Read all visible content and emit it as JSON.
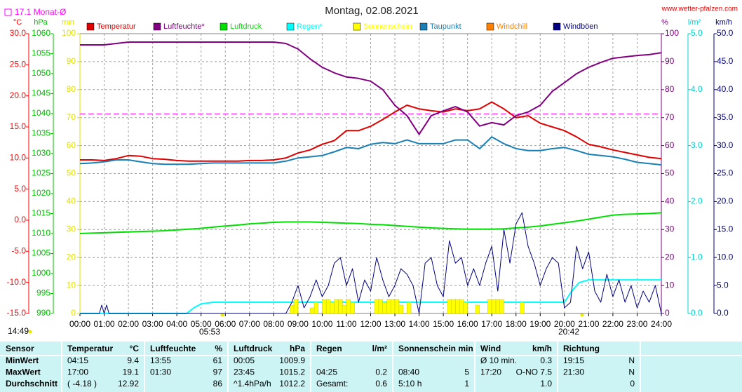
{
  "chart_data": {
    "type": "line",
    "title": "Montag, 02.08.2021",
    "source": "www.wetter-pfalzen.com",
    "reference": {
      "label": "17.1 Monat-Ø",
      "value": 17.1,
      "axis": 0,
      "color": "#ff00ff"
    },
    "sun": {
      "day_length": "14:49",
      "sunrise": "05:53",
      "sunset": "20:42"
    },
    "grid": true,
    "grid_axis": 3,
    "xlim": [
      0,
      24
    ],
    "xticks": [
      {
        "value": 0,
        "label": "00:00"
      },
      {
        "value": 1,
        "label": "01:00"
      },
      {
        "value": 2,
        "label": "02:00"
      },
      {
        "value": 3,
        "label": "03:00"
      },
      {
        "value": 4,
        "label": "04:00"
      },
      {
        "value": 5,
        "label": "05:00"
      },
      {
        "value": 6,
        "label": "06:00"
      },
      {
        "value": 7,
        "label": "07:00"
      },
      {
        "value": 8,
        "label": "08:00"
      },
      {
        "value": 9,
        "label": "09:00"
      },
      {
        "value": 10,
        "label": "10:00"
      },
      {
        "value": 11,
        "label": "11:00"
      },
      {
        "value": 12,
        "label": "12:00"
      },
      {
        "value": 13,
        "label": "13:00"
      },
      {
        "value": 14,
        "label": "14:00"
      },
      {
        "value": 15,
        "label": "15:00"
      },
      {
        "value": 16,
        "label": "16:00"
      },
      {
        "value": 17,
        "label": "17:00"
      },
      {
        "value": 18,
        "label": "18:00"
      },
      {
        "value": 19,
        "label": "19:00"
      },
      {
        "value": 20,
        "label": "20:00"
      },
      {
        "value": 21,
        "label": "21:00"
      },
      {
        "value": 22,
        "label": "22:00"
      },
      {
        "value": 23,
        "label": "23:00"
      },
      {
        "value": 24,
        "label": "24:00"
      }
    ],
    "axes": [
      {
        "unit": "°C",
        "color": "#ff0000",
        "lim": [
          -15,
          30
        ],
        "ticks": [
          {
            "value": 30,
            "label": "30.0"
          },
          {
            "value": 25,
            "label": "25.0"
          },
          {
            "value": 20,
            "label": "20.0"
          },
          {
            "value": 15,
            "label": "15.0"
          },
          {
            "value": 10,
            "label": "10.0"
          },
          {
            "value": 5,
            "label": "5.0"
          },
          {
            "value": 0,
            "label": "0.0"
          },
          {
            "value": -5,
            "label": "-5.0"
          },
          {
            "value": -10,
            "label": "-10.0"
          },
          {
            "value": -15,
            "label": "-15.0"
          }
        ]
      },
      {
        "unit": "hPa",
        "color": "#00c000",
        "lim": [
          990,
          1060
        ],
        "ticks": [
          1060,
          1055,
          1050,
          1045,
          1040,
          1035,
          1030,
          1025,
          1020,
          1015,
          1010,
          1005,
          1000,
          995,
          990
        ]
      },
      {
        "unit": "min",
        "color": "#e0e000",
        "lim": [
          0,
          100
        ],
        "ticks": [
          100,
          90,
          80,
          70,
          60,
          50,
          40,
          30,
          20,
          10,
          0
        ]
      },
      {
        "unit": "%",
        "color": "#800080",
        "lim": [
          0,
          100
        ],
        "ticks": [
          100,
          90,
          80,
          70,
          60,
          50,
          40,
          30,
          20,
          10,
          0
        ]
      },
      {
        "unit": "l/m²",
        "color": "#00d0d0",
        "lim": [
          0,
          5
        ],
        "ticks": [
          {
            "value": 5,
            "label": "5.0"
          },
          {
            "value": 4,
            "label": "4.0"
          },
          {
            "value": 3,
            "label": "3.0"
          },
          {
            "value": 2,
            "label": "2.0"
          },
          {
            "value": 1,
            "label": "1.0"
          },
          {
            "value": 0,
            "label": "0.0"
          }
        ]
      },
      {
        "unit": "km/h",
        "color": "#000080",
        "lim": [
          0,
          50
        ],
        "ticks": [
          {
            "value": 50,
            "label": "50.0"
          },
          {
            "value": 45,
            "label": "45.0"
          },
          {
            "value": 40,
            "label": "40.0"
          },
          {
            "value": 35,
            "label": "35.0"
          },
          {
            "value": 30,
            "label": "30.0"
          },
          {
            "value": 25,
            "label": "25.0"
          },
          {
            "value": 20,
            "label": "20.0"
          },
          {
            "value": 15,
            "label": "15.0"
          },
          {
            "value": 10,
            "label": "10.0"
          },
          {
            "value": 5,
            "label": "5.0"
          },
          {
            "value": 0,
            "label": "0.0"
          }
        ]
      }
    ],
    "x": [
      0,
      0.5,
      1,
      1.5,
      2,
      2.5,
      3,
      3.5,
      4,
      4.5,
      5,
      5.5,
      6,
      6.5,
      7,
      7.5,
      8,
      8.5,
      9,
      9.5,
      10,
      10.5,
      11,
      11.5,
      12,
      12.5,
      13,
      13.5,
      14,
      14.5,
      15,
      15.5,
      16,
      16.5,
      17,
      17.5,
      18,
      18.5,
      19,
      19.5,
      20,
      20.5,
      21,
      21.5,
      22,
      22.5,
      23,
      23.5,
      24
    ],
    "series": [
      {
        "name": "Temperatur",
        "color": "#e00000",
        "axis": 0,
        "values": [
          9.7,
          9.7,
          9.6,
          9.9,
          10.4,
          10.3,
          9.9,
          9.8,
          9.6,
          9.5,
          9.5,
          9.5,
          9.5,
          9.5,
          9.6,
          9.6,
          9.7,
          10.0,
          10.8,
          11.3,
          12.2,
          12.8,
          14.4,
          14.4,
          15.1,
          16.2,
          17.4,
          18.5,
          17.9,
          17.6,
          17.4,
          17.9,
          17.6,
          17.9,
          19.0,
          17.9,
          16.5,
          16.8,
          15.6,
          15.0,
          14.4,
          13.4,
          12.2,
          11.8,
          11.3,
          10.9,
          10.5,
          10.1,
          9.9
        ]
      },
      {
        "name": "Luftfeuchte*",
        "color": "#800080",
        "axis": 3,
        "values": [
          96,
          96,
          96,
          96.5,
          97,
          97,
          97,
          97,
          97,
          97,
          97,
          97,
          97,
          97,
          97,
          97,
          97,
          96.5,
          94.5,
          91,
          88,
          86,
          84.5,
          84,
          83,
          80,
          74.4,
          70.7,
          64,
          70.7,
          72.4,
          73.9,
          72,
          67,
          68.2,
          67.4,
          70.7,
          72,
          74.4,
          79.4,
          82.5,
          85.7,
          88,
          89.7,
          91.2,
          91.7,
          92.2,
          92.5,
          93.2
        ]
      },
      {
        "name": "Luftdruck",
        "color": "#00e000",
        "axis": 1,
        "values": [
          1010.0,
          1010.1,
          1010.2,
          1010.3,
          1010.4,
          1010.5,
          1010.6,
          1010.7,
          1010.9,
          1011.1,
          1011.3,
          1011.6,
          1011.9,
          1012.1,
          1012.4,
          1012.6,
          1012.8,
          1012.9,
          1012.9,
          1012.9,
          1012.8,
          1012.7,
          1012.6,
          1012.5,
          1012.3,
          1012.2,
          1012.0,
          1011.8,
          1011.6,
          1011.4,
          1011.3,
          1011.2,
          1011.1,
          1011.1,
          1011.1,
          1011.2,
          1011.4,
          1011.6,
          1011.9,
          1012.3,
          1012.7,
          1013.1,
          1013.6,
          1014.1,
          1014.6,
          1014.8,
          1014.9,
          1015.0,
          1015.2
        ]
      },
      {
        "name": "Regen*",
        "color": "#00ffff",
        "axis": 4,
        "x": [
          0,
          4.4,
          4.7,
          5.0,
          5.5,
          20,
          20.3,
          20.6,
          21,
          24
        ],
        "values": [
          0,
          0,
          0.1,
          0.17,
          0.2,
          0.2,
          0.4,
          0.55,
          0.6,
          0.6
        ]
      },
      {
        "name": "Sonnenschein",
        "color": "#ffff00",
        "axis": 2,
        "kind": "bar",
        "x": [
          8.67,
          8.83,
          9.5,
          9.67,
          10.0,
          10.17,
          10.33,
          10.5,
          10.67,
          10.83,
          11.0,
          11.17,
          12.17,
          12.33,
          12.5,
          12.67,
          12.83,
          13.0,
          13.17,
          13.5,
          15.17,
          15.33,
          15.5,
          15.67,
          15.83,
          16.33,
          16.83,
          17.0,
          17.17,
          17.33,
          18.17
        ],
        "values": [
          3,
          5,
          2,
          4,
          5,
          5,
          4,
          5,
          5,
          3,
          5,
          4,
          5,
          5,
          4,
          5,
          5,
          5,
          3,
          4,
          5,
          5,
          5,
          5,
          4,
          3,
          5,
          5,
          5,
          5,
          4
        ]
      },
      {
        "name": "Taupunkt",
        "color": "#1a7fb5",
        "axis": 0,
        "values": [
          9.1,
          9.2,
          9.4,
          9.7,
          9.7,
          9.4,
          9.1,
          9.0,
          9.0,
          9.0,
          9.1,
          9.2,
          9.2,
          9.2,
          9.2,
          9.2,
          9.2,
          9.5,
          10.0,
          10.2,
          10.4,
          11.0,
          11.7,
          11.5,
          12.2,
          12.5,
          12.3,
          12.9,
          12.3,
          12.3,
          12.3,
          12.9,
          12.9,
          11.5,
          13.4,
          12.3,
          11.5,
          11.2,
          11.2,
          11.5,
          11.7,
          11.2,
          10.6,
          10.4,
          10.2,
          9.8,
          9.3,
          9.1,
          8.9
        ]
      },
      {
        "name": "Windchill",
        "color": "#ff8000",
        "axis": 0,
        "x": [],
        "values": []
      },
      {
        "name": "Windböen",
        "color": "#000080",
        "axis": 5,
        "thin": true,
        "x": [
          0,
          0.8,
          0.9,
          1.0,
          1.1,
          1.2,
          8.5,
          8.75,
          9,
          9.25,
          9.5,
          9.75,
          10,
          10.25,
          10.5,
          10.75,
          11,
          11.25,
          11.5,
          11.75,
          12,
          12.25,
          12.5,
          12.75,
          13,
          13.25,
          13.5,
          13.75,
          14,
          14.25,
          14.5,
          14.75,
          15,
          15.25,
          15.5,
          15.75,
          16,
          16.25,
          16.5,
          16.75,
          17,
          17.25,
          17.5,
          17.75,
          18,
          18.25,
          18.5,
          18.75,
          19,
          19.25,
          19.5,
          19.75,
          20,
          20.25,
          20.5,
          20.75,
          21,
          21.25,
          21.5,
          21.75,
          22,
          22.25,
          22.5,
          22.75,
          23,
          23.25,
          23.5,
          23.75,
          24
        ],
        "values": [
          0,
          0,
          1.5,
          0,
          1.5,
          0,
          0,
          2,
          5,
          1,
          3,
          6,
          3,
          5,
          9,
          10,
          5,
          8,
          2,
          6,
          4,
          10,
          6,
          3,
          5,
          8,
          7,
          5,
          0,
          9,
          10,
          5,
          3,
          13,
          9,
          10,
          5,
          8,
          5,
          9,
          12,
          4,
          15,
          9,
          16,
          18,
          12,
          9,
          5,
          8,
          10,
          9,
          1,
          2,
          12,
          8,
          11,
          4,
          2,
          7,
          3,
          6,
          2,
          5,
          1,
          4,
          2,
          5,
          0
        ]
      }
    ]
  },
  "table": {
    "header": [
      {
        "label": "Sensor"
      },
      {
        "label": "Temperatur",
        "unit": "°C"
      },
      {
        "label": "Luftfeuchte",
        "unit": "%"
      },
      {
        "label": "Luftdruck",
        "unit": "hPa"
      },
      {
        "label": "Regen",
        "unit": "l/m²"
      },
      {
        "label": "Sonnenschein min"
      },
      {
        "label": "Wind",
        "unit": "km/h"
      },
      {
        "label": "Richtung"
      }
    ],
    "rows": [
      {
        "label": "MinWert",
        "cells": [
          {
            "time": "04:15",
            "value": "9.4"
          },
          {
            "time": "13:55",
            "value": "61"
          },
          {
            "time": "00:05",
            "value": "1009.9"
          },
          {},
          {},
          {
            "time": "Ø 10 min.",
            "value": "0.3"
          },
          {
            "time": "19:15",
            "value": "N"
          }
        ]
      },
      {
        "label": "MaxWert",
        "cells": [
          {
            "time": "17:00",
            "value": "19.1"
          },
          {
            "time": "01:30",
            "value": "97"
          },
          {
            "time": "23:45",
            "value": "1015.2"
          },
          {
            "time": "04:25",
            "value": "0.2"
          },
          {
            "time": "08:40",
            "value": "5"
          },
          {
            "time": "17:20",
            "value": "O-NO 7.5"
          },
          {
            "time": "21:30",
            "value": "N"
          }
        ]
      },
      {
        "label": "Durchschnitt",
        "cells": [
          {
            "time": "( -4.18 )",
            "value": "12.92"
          },
          {
            "value": "86"
          },
          {
            "time": "^1.4hPa/h",
            "value": "1012.2"
          },
          {
            "time": "Gesamt:",
            "value": "0.6"
          },
          {
            "time": "5:10 h",
            "value": "1"
          },
          {
            "value": "1.0"
          },
          {
            "value": "0"
          }
        ]
      }
    ]
  }
}
